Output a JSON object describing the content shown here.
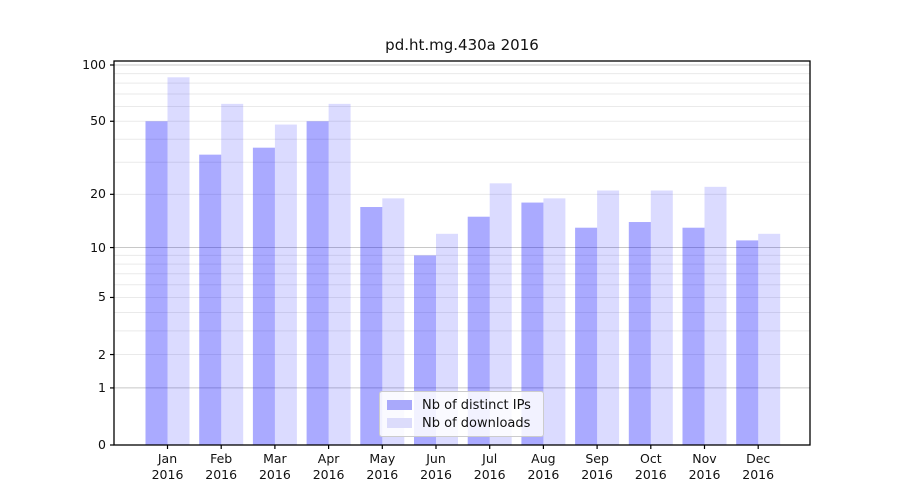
{
  "window": {
    "kind": "static-bar-chart-image",
    "background": "#ffffff"
  },
  "chart_data": {
    "type": "bar",
    "title": "pd.ht.mg.430a 2016",
    "year": "2016",
    "months": [
      "Jan",
      "Feb",
      "Mar",
      "Apr",
      "May",
      "Jun",
      "Jul",
      "Aug",
      "Sep",
      "Oct",
      "Nov",
      "Dec"
    ],
    "categories": [
      "Jan 2016",
      "Feb 2016",
      "Mar 2016",
      "Apr 2016",
      "May 2016",
      "Jun 2016",
      "Jul 2016",
      "Aug 2016",
      "Sep 2016",
      "Oct 2016",
      "Nov 2016",
      "Dec 2016"
    ],
    "series": [
      {
        "name": "Nb of distinct IPs",
        "values": [
          50,
          33,
          36,
          50,
          17,
          9,
          15,
          18,
          13,
          14,
          13,
          11
        ]
      },
      {
        "name": "Nb of downloads",
        "values": [
          86,
          62,
          48,
          62,
          19,
          12,
          23,
          19,
          21,
          21,
          22,
          12
        ]
      }
    ],
    "y_axis": {
      "scale": "log10(1+v)",
      "tick_values": [
        0,
        1,
        2,
        5,
        10,
        20,
        50,
        100
      ],
      "major_grid_values": [
        1,
        10,
        100
      ],
      "minor_grid_values": [
        2,
        3,
        4,
        5,
        6,
        7,
        8,
        9,
        20,
        30,
        40,
        50,
        60,
        70,
        80,
        90
      ],
      "ylim": [
        0,
        100
      ]
    },
    "legend": {
      "position": "lower-center",
      "items": [
        "Nb of distinct IPs",
        "Nb of downloads"
      ]
    },
    "grid": true
  },
  "colors": {
    "ips_fill": "rgba(0,0,255,0.335)",
    "downloads_fill": "rgba(0,0,255,0.14)",
    "ips_swatch": "#a9a9fb",
    "downloads_swatch": "#dcdcfb",
    "grid_minor": "#eaeaea",
    "grid_major": "#c8c8c8",
    "axis": "#000000",
    "text": "#111111",
    "legend_border": "#cccccc",
    "legend_bg": "rgba(255,255,255,0.85)"
  }
}
